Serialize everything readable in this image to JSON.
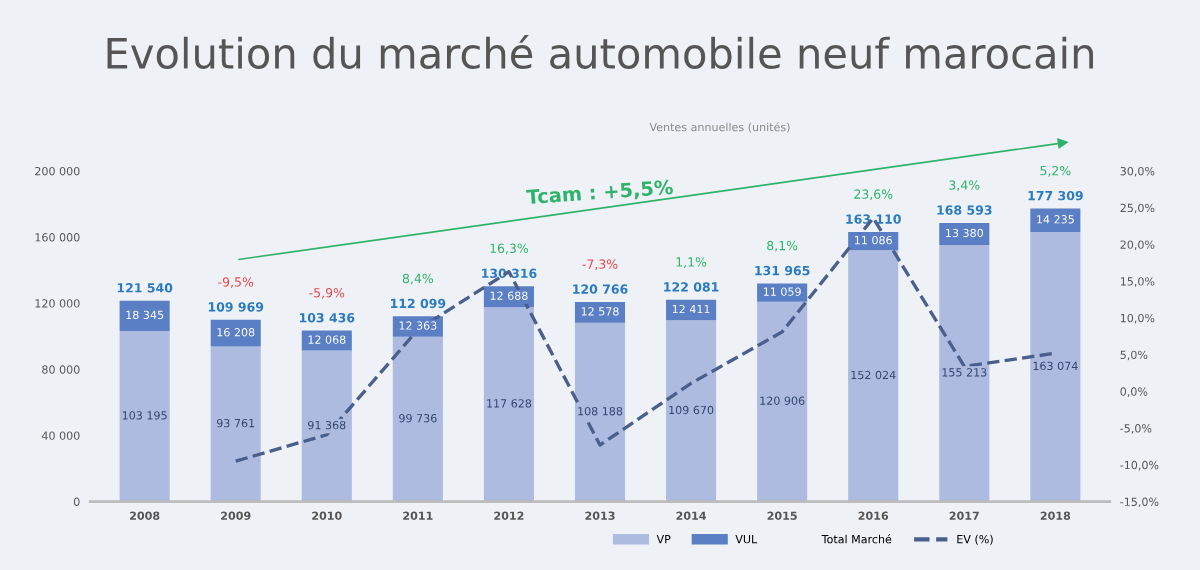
{
  "chart_data": {
    "type": "bar",
    "title": "Evolution du marché automobile neuf marocain",
    "subtitle": "Ventes annuelles (unités)",
    "categories": [
      "2008",
      "2009",
      "2010",
      "2011",
      "2012",
      "2013",
      "2014",
      "2015",
      "2016",
      "2017",
      "2018"
    ],
    "stacked": true,
    "series": [
      {
        "name": "VP",
        "color": "#aebbe0",
        "values": [
          103195,
          93761,
          91368,
          99736,
          117628,
          108188,
          109670,
          120906,
          152024,
          155213,
          163074
        ],
        "value_labels": [
          "103 195",
          "93 761",
          "91 368",
          "99 736",
          "117 628",
          "108 188",
          "109 670",
          "120 906",
          "152 024",
          "155 213",
          "163 074"
        ]
      },
      {
        "name": "VUL",
        "color": "#5b7fc4",
        "values": [
          18345,
          16208,
          12068,
          12363,
          12688,
          12578,
          12411,
          11059,
          11086,
          13380,
          14235
        ],
        "value_labels": [
          "18 345",
          "16 208",
          "12 068",
          "12 363",
          "12 688",
          "12 578",
          "12 411",
          "11 059",
          "11 086",
          "13 380",
          "14 235"
        ]
      },
      {
        "name": "EV (%)",
        "type": "line",
        "axis": "y2",
        "color": "#4a5f8c",
        "line_style": "dashed",
        "values": [
          null,
          -9.5,
          -5.9,
          8.4,
          16.3,
          -7.3,
          1.1,
          8.1,
          23.6,
          3.4,
          5.2
        ]
      }
    ],
    "totals": [
      "121 540",
      "109 969",
      "103 436",
      "112 099",
      "130 316",
      "120 766",
      "122 081",
      "131 965",
      "163 110",
      "168 593",
      "177 309"
    ],
    "ylim": [
      0,
      200000
    ],
    "yticks": [
      {
        "value": 0,
        "label": "0"
      },
      {
        "value": 40000,
        "label": "40 000"
      },
      {
        "value": 80000,
        "label": "80 000"
      },
      {
        "value": 120000,
        "label": "120 000"
      },
      {
        "value": 160000,
        "label": "160 000"
      },
      {
        "value": 200000,
        "label": "200 000"
      }
    ],
    "y2lim": [
      -15,
      30
    ],
    "y2ticks": [
      {
        "value": -15,
        "label": "-15,0%"
      },
      {
        "value": -10,
        "label": "-10,0%"
      },
      {
        "value": -5,
        "label": "-5,0%"
      },
      {
        "value": 0,
        "label": "0,0%"
      },
      {
        "value": 5,
        "label": "5,0%"
      },
      {
        "value": 10,
        "label": "10,0%"
      },
      {
        "value": 15,
        "label": "15,0%"
      },
      {
        "value": 20,
        "label": "20,0%"
      },
      {
        "value": 25,
        "label": "25,0%"
      },
      {
        "value": 30,
        "label": "30,0%"
      }
    ],
    "annotations": [
      "Tcam : +5,5%",
      "Total Marché",
      "-9,5%",
      "-5,9%",
      "8,4%",
      "16,3%",
      "-7,3%",
      "1,1%",
      "8,1%",
      "23,6%",
      "3,4%",
      "5,2%"
    ],
    "legend": "bottom",
    "grid": false
  }
}
